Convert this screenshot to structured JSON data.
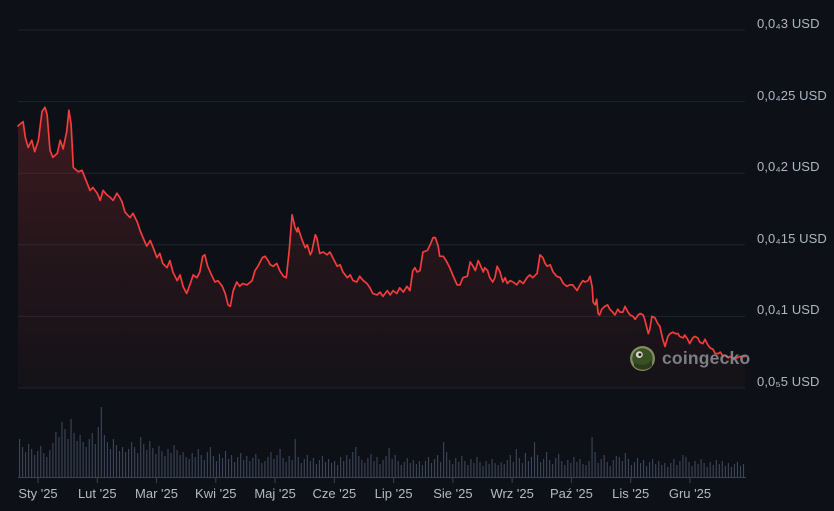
{
  "watermark": {
    "brand": "coingecko"
  },
  "colors": {
    "background": "#0d1117",
    "grid": "#1d242c",
    "line": "#f43c3c",
    "fill_top": "rgba(244,60,60,0.22)",
    "fill_mid": "rgba(244,60,60,0.10)",
    "fill_bottom": "rgba(244,60,60,0.03)",
    "volume_bar": "#3c4659",
    "axis_line": "#3a4250",
    "y_label_text": "#aeb6c3",
    "x_label_text": "#b2bac6",
    "watermark_text": "#85898f",
    "gecko_outer": "#8d9768",
    "gecko_body": "#3c5626",
    "gecko_eye_white": "#e8e8e2",
    "gecko_pupil": "#1c2413"
  },
  "chart_data": {
    "type": "area",
    "title": "",
    "currency": "USD",
    "locale": "pl",
    "grid": "horizontal",
    "legend": "none",
    "y_axis": {
      "side": "right",
      "labels": [
        "0,0₄3 USD",
        "0,0₄25 USD",
        "0,0₄2 USD",
        "0,0₄15 USD",
        "0,0₄1 USD",
        "0,0₅5 USD"
      ],
      "values_usd": [
        3e-05,
        2.5e-05,
        2e-05,
        1.5e-05,
        1e-05,
        5e-06
      ]
    },
    "x_axis": {
      "labels": [
        "Sty '25",
        "Lut '25",
        "Mar '25",
        "Kwi '25",
        "Maj '25",
        "Cze '25",
        "Lip '25",
        "Sie '25",
        "Wrz '25",
        "Paź '25",
        "Lis '25",
        "Gru '25"
      ]
    },
    "ylim_usd": [
      5e-06,
      3e-05
    ],
    "price_unit": "1e-6 USD",
    "price_points": [
      [
        0.0,
        23.3
      ],
      [
        0.007,
        23.6
      ],
      [
        0.01,
        22.5
      ],
      [
        0.014,
        21.8
      ],
      [
        0.019,
        22.3
      ],
      [
        0.023,
        21.5
      ],
      [
        0.028,
        22.3
      ],
      [
        0.033,
        24.3
      ],
      [
        0.037,
        24.6
      ],
      [
        0.04,
        24.1
      ],
      [
        0.044,
        21.6
      ],
      [
        0.048,
        21.1
      ],
      [
        0.054,
        21.4
      ],
      [
        0.058,
        22.3
      ],
      [
        0.062,
        21.7
      ],
      [
        0.067,
        22.9
      ],
      [
        0.07,
        24.4
      ],
      [
        0.073,
        23.4
      ],
      [
        0.076,
        20.4
      ],
      [
        0.083,
        20.1
      ],
      [
        0.088,
        20.2
      ],
      [
        0.092,
        19.7
      ],
      [
        0.099,
        18.8
      ],
      [
        0.103,
        19.0
      ],
      [
        0.109,
        18.6
      ],
      [
        0.113,
        18.1
      ],
      [
        0.117,
        18.8
      ],
      [
        0.122,
        18.5
      ],
      [
        0.127,
        18.3
      ],
      [
        0.131,
        18.1
      ],
      [
        0.136,
        18.6
      ],
      [
        0.14,
        18.3
      ],
      [
        0.143,
        18.0
      ],
      [
        0.147,
        17.3
      ],
      [
        0.154,
        16.9
      ],
      [
        0.158,
        17.2
      ],
      [
        0.164,
        16.6
      ],
      [
        0.168,
        16.0
      ],
      [
        0.172,
        15.5
      ],
      [
        0.177,
        14.9
      ],
      [
        0.182,
        15.3
      ],
      [
        0.186,
        14.8
      ],
      [
        0.191,
        14.1
      ],
      [
        0.195,
        14.4
      ],
      [
        0.199,
        13.7
      ],
      [
        0.205,
        13.4
      ],
      [
        0.209,
        13.9
      ],
      [
        0.213,
        13.1
      ],
      [
        0.219,
        12.5
      ],
      [
        0.223,
        12.9
      ],
      [
        0.227,
        12.1
      ],
      [
        0.232,
        11.6
      ],
      [
        0.237,
        12.3
      ],
      [
        0.241,
        12.9
      ],
      [
        0.246,
        12.7
      ],
      [
        0.25,
        13.1
      ],
      [
        0.254,
        14.2
      ],
      [
        0.257,
        14.3
      ],
      [
        0.261,
        13.5
      ],
      [
        0.267,
        12.8
      ],
      [
        0.271,
        12.4
      ],
      [
        0.275,
        12.5
      ],
      [
        0.281,
        12.1
      ],
      [
        0.285,
        11.6
      ],
      [
        0.289,
        10.8
      ],
      [
        0.292,
        10.7
      ],
      [
        0.296,
        11.8
      ],
      [
        0.301,
        12.4
      ],
      [
        0.305,
        12.1
      ],
      [
        0.309,
        12.3
      ],
      [
        0.315,
        12.2
      ],
      [
        0.322,
        12.5
      ],
      [
        0.326,
        13.2
      ],
      [
        0.33,
        13.5
      ],
      [
        0.336,
        14.1
      ],
      [
        0.34,
        14.2
      ],
      [
        0.344,
        13.9
      ],
      [
        0.347,
        13.6
      ],
      [
        0.351,
        13.5
      ],
      [
        0.356,
        13.7
      ],
      [
        0.36,
        13.2
      ],
      [
        0.365,
        12.8
      ],
      [
        0.369,
        12.7
      ],
      [
        0.373,
        14.6
      ],
      [
        0.377,
        17.1
      ],
      [
        0.381,
        16.2
      ],
      [
        0.384,
        15.9
      ],
      [
        0.385,
        16.2
      ],
      [
        0.391,
        15.3
      ],
      [
        0.395,
        14.8
      ],
      [
        0.398,
        15.0
      ],
      [
        0.402,
        14.3
      ],
      [
        0.404,
        14.5
      ],
      [
        0.409,
        15.7
      ],
      [
        0.411,
        15.5
      ],
      [
        0.415,
        14.4
      ],
      [
        0.42,
        14.5
      ],
      [
        0.425,
        14.3
      ],
      [
        0.429,
        14.5
      ],
      [
        0.433,
        14.1
      ],
      [
        0.439,
        13.5
      ],
      [
        0.443,
        13.6
      ],
      [
        0.447,
        13.1
      ],
      [
        0.453,
        12.7
      ],
      [
        0.457,
        12.9
      ],
      [
        0.461,
        12.5
      ],
      [
        0.466,
        12.4
      ],
      [
        0.47,
        12.8
      ],
      [
        0.475,
        12.5
      ],
      [
        0.48,
        12.3
      ],
      [
        0.484,
        12.0
      ],
      [
        0.488,
        11.6
      ],
      [
        0.494,
        11.5
      ],
      [
        0.498,
        11.7
      ],
      [
        0.502,
        11.4
      ],
      [
        0.508,
        11.8
      ],
      [
        0.512,
        11.5
      ],
      [
        0.516,
        11.8
      ],
      [
        0.521,
        11.6
      ],
      [
        0.525,
        12.0
      ],
      [
        0.53,
        11.7
      ],
      [
        0.535,
        12.1
      ],
      [
        0.539,
        11.8
      ],
      [
        0.543,
        13.2
      ],
      [
        0.546,
        13.4
      ],
      [
        0.549,
        13.1
      ],
      [
        0.553,
        13.2
      ],
      [
        0.557,
        14.5
      ],
      [
        0.563,
        14.6
      ],
      [
        0.567,
        15.0
      ],
      [
        0.571,
        15.5
      ],
      [
        0.574,
        15.5
      ],
      [
        0.578,
        14.9
      ],
      [
        0.58,
        14.2
      ],
      [
        0.585,
        14.2
      ],
      [
        0.59,
        13.8
      ],
      [
        0.594,
        13.4
      ],
      [
        0.598,
        12.9
      ],
      [
        0.604,
        12.2
      ],
      [
        0.608,
        12.2
      ],
      [
        0.612,
        12.7
      ],
      [
        0.618,
        12.8
      ],
      [
        0.622,
        13.8
      ],
      [
        0.626,
        13.5
      ],
      [
        0.629,
        13.2
      ],
      [
        0.633,
        13.9
      ],
      [
        0.635,
        13.7
      ],
      [
        0.64,
        13.1
      ],
      [
        0.642,
        13.4
      ],
      [
        0.646,
        13.2
      ],
      [
        0.649,
        12.7
      ],
      [
        0.653,
        12.4
      ],
      [
        0.656,
        12.7
      ],
      [
        0.659,
        13.5
      ],
      [
        0.663,
        13.1
      ],
      [
        0.667,
        12.4
      ],
      [
        0.67,
        12.7
      ],
      [
        0.673,
        12.3
      ],
      [
        0.677,
        12.5
      ],
      [
        0.681,
        12.4
      ],
      [
        0.686,
        12.2
      ],
      [
        0.69,
        12.5
      ],
      [
        0.695,
        12.3
      ],
      [
        0.7,
        12.7
      ],
      [
        0.704,
        12.9
      ],
      [
        0.708,
        12.7
      ],
      [
        0.714,
        13.0
      ],
      [
        0.718,
        14.3
      ],
      [
        0.722,
        14.1
      ],
      [
        0.725,
        13.7
      ],
      [
        0.728,
        13.5
      ],
      [
        0.732,
        13.6
      ],
      [
        0.736,
        13.1
      ],
      [
        0.741,
        12.8
      ],
      [
        0.746,
        12.7
      ],
      [
        0.75,
        12.3
      ],
      [
        0.755,
        12.1
      ],
      [
        0.759,
        12.2
      ],
      [
        0.763,
        12.2
      ],
      [
        0.769,
        11.8
      ],
      [
        0.773,
        12.2
      ],
      [
        0.777,
        12.5
      ],
      [
        0.78,
        12.4
      ],
      [
        0.784,
        12.5
      ],
      [
        0.787,
        12.8
      ],
      [
        0.79,
        12.0
      ],
      [
        0.791,
        11.0
      ],
      [
        0.794,
        10.8
      ],
      [
        0.796,
        11.2
      ],
      [
        0.798,
        10.2
      ],
      [
        0.8,
        10.1
      ],
      [
        0.803,
        10.5
      ],
      [
        0.807,
        10.7
      ],
      [
        0.811,
        10.8
      ],
      [
        0.814,
        10.5
      ],
      [
        0.818,
        10.3
      ],
      [
        0.821,
        10.1
      ],
      [
        0.825,
        10.5
      ],
      [
        0.828,
        10.3
      ],
      [
        0.832,
        10.3
      ],
      [
        0.835,
        10.7
      ],
      [
        0.839,
        10.3
      ],
      [
        0.842,
        10.1
      ],
      [
        0.846,
        10.0
      ],
      [
        0.849,
        9.8
      ],
      [
        0.853,
        10.1
      ],
      [
        0.856,
        10.2
      ],
      [
        0.86,
        10.1
      ],
      [
        0.862,
        9.8
      ],
      [
        0.867,
        8.8
      ],
      [
        0.869,
        9.1
      ],
      [
        0.872,
        10.0
      ],
      [
        0.876,
        9.9
      ],
      [
        0.88,
        9.5
      ],
      [
        0.883,
        9.3
      ],
      [
        0.887,
        8.4
      ],
      [
        0.89,
        7.9
      ],
      [
        0.894,
        8.6
      ],
      [
        0.897,
        8.8
      ],
      [
        0.901,
        8.9
      ],
      [
        0.904,
        8.8
      ],
      [
        0.908,
        8.8
      ],
      [
        0.91,
        8.6
      ],
      [
        0.915,
        8.5
      ],
      [
        0.917,
        8.7
      ],
      [
        0.921,
        8.4
      ],
      [
        0.924,
        8.1
      ],
      [
        0.928,
        8.5
      ],
      [
        0.931,
        8.6
      ],
      [
        0.935,
        8.5
      ],
      [
        0.938,
        8.2
      ],
      [
        0.942,
        8.1
      ],
      [
        0.945,
        8.4
      ],
      [
        0.949,
        8.0
      ],
      [
        0.952,
        7.8
      ],
      [
        0.956,
        7.7
      ],
      [
        0.959,
        7.4
      ],
      [
        0.963,
        7.4
      ],
      [
        0.966,
        7.5
      ],
      [
        0.97,
        7.2
      ],
      [
        0.972,
        7.3
      ],
      [
        0.977,
        7.1
      ],
      [
        0.979,
        7.2
      ],
      [
        0.983,
        7.1
      ],
      [
        0.989,
        7.1
      ],
      [
        0.993,
        7.2
      ],
      [
        0.997,
        7.2
      ],
      [
        1.0,
        7.2
      ]
    ],
    "volume": {
      "unit": "relative (0-70)",
      "values": [
        38,
        30,
        25,
        33,
        28,
        22,
        26,
        31,
        24,
        20,
        27,
        34,
        45,
        40,
        55,
        48,
        38,
        58,
        44,
        36,
        42,
        35,
        30,
        38,
        44,
        33,
        50,
        70,
        42,
        35,
        28,
        38,
        32,
        26,
        30,
        25,
        28,
        35,
        30,
        24,
        40,
        33,
        27,
        36,
        29,
        23,
        31,
        26,
        21,
        28,
        24,
        32,
        27,
        22,
        25,
        20,
        18,
        24,
        20,
        28,
        22,
        17,
        25,
        30,
        21,
        16,
        23,
        19,
        26,
        18,
        22,
        15,
        20,
        24,
        17,
        21,
        16,
        19,
        23,
        18,
        14,
        16,
        20,
        25,
        18,
        22,
        28,
        19,
        15,
        21,
        17,
        38,
        20,
        14,
        18,
        22,
        16,
        19,
        13,
        17,
        21,
        15,
        18,
        14,
        16,
        12,
        20,
        16,
        22,
        18,
        25,
        30,
        21,
        17,
        14,
        19,
        23,
        16,
        20,
        13,
        17,
        21,
        29,
        18,
        22,
        16,
        12,
        15,
        19,
        14,
        17,
        13,
        16,
        12,
        16,
        20,
        14,
        18,
        22,
        15,
        35,
        25,
        17,
        13,
        19,
        15,
        21,
        16,
        12,
        18,
        14,
        20,
        15,
        11,
        16,
        13,
        18,
        14,
        12,
        15,
        13,
        17,
        22,
        15,
        28,
        19,
        14,
        24,
        16,
        20,
        35,
        22,
        15,
        18,
        25,
        17,
        13,
        19,
        23,
        16,
        12,
        17,
        14,
        20,
        15,
        18,
        13,
        12,
        16,
        40,
        25,
        14,
        18,
        22,
        15,
        11,
        17,
        21,
        20,
        16,
        24,
        18,
        12,
        15,
        19,
        14,
        17,
        11,
        15,
        18,
        13,
        16,
        12,
        14,
        10,
        14,
        18,
        12,
        16,
        22,
        20,
        15,
        11,
        16,
        13,
        18,
        14,
        10,
        15,
        12,
        17,
        13,
        16,
        11,
        14,
        10,
        13,
        15,
        11,
        13
      ]
    }
  }
}
